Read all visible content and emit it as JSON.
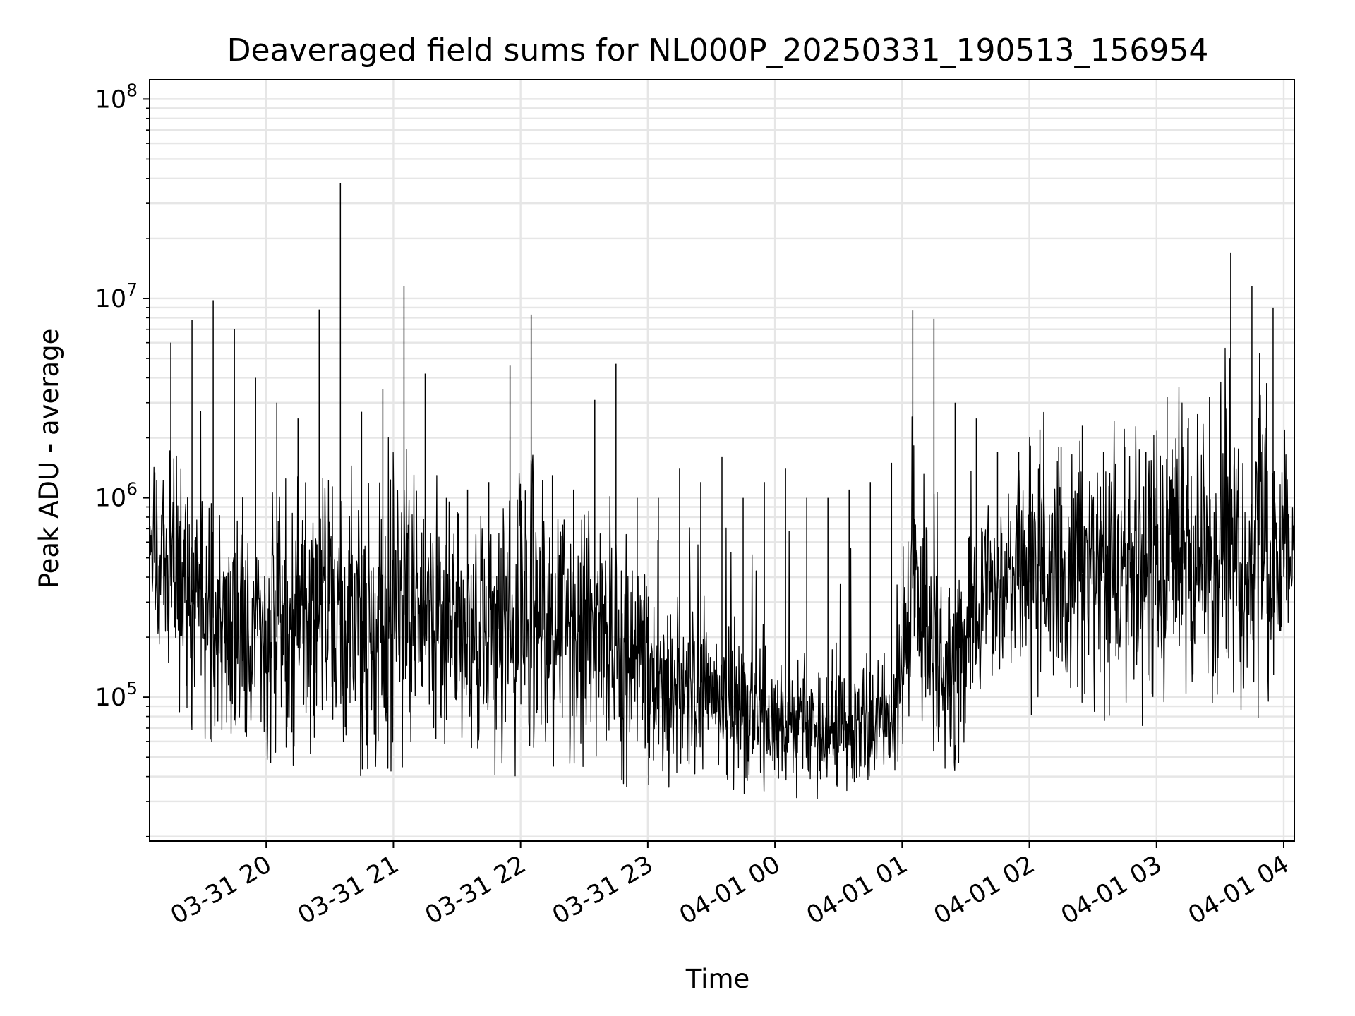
{
  "chart_data": {
    "type": "line",
    "title": "Deaveraged field sums for NL000P_20250331_190513_156954",
    "xlabel": "Time",
    "ylabel": "Peak ADU - average",
    "yscale": "log",
    "ylim": [
      19000,
      125000000
    ],
    "xlim": [
      "2025-03-31 19:05",
      "2025-04-01 04:05"
    ],
    "grid": true,
    "colors": {
      "line": "#000000",
      "grid": "#e6e6e6",
      "axes": "#000000"
    },
    "x_ticks": [
      {
        "t": "2025-03-31 20:00",
        "label": "03-31 20"
      },
      {
        "t": "2025-03-31 21:00",
        "label": "03-31 21"
      },
      {
        "t": "2025-03-31 22:00",
        "label": "03-31 22"
      },
      {
        "t": "2025-03-31 23:00",
        "label": "03-31 23"
      },
      {
        "t": "2025-04-01 00:00",
        "label": "04-01 00"
      },
      {
        "t": "2025-04-01 01:00",
        "label": "04-01 01"
      },
      {
        "t": "2025-04-01 02:00",
        "label": "04-01 02"
      },
      {
        "t": "2025-04-01 03:00",
        "label": "04-01 03"
      },
      {
        "t": "2025-04-01 04:00",
        "label": "04-01 04"
      }
    ],
    "y_ticks": [
      {
        "value": 100000,
        "mant": "10",
        "exp": "5"
      },
      {
        "value": 1000000,
        "mant": "10",
        "exp": "6"
      },
      {
        "value": 10000000,
        "mant": "10",
        "exp": "7"
      },
      {
        "value": 100000000,
        "mant": "10",
        "exp": "8"
      }
    ],
    "series": [
      {
        "x": [
          "2025-03-31 19:05",
          "2025-03-31 19:15",
          "2025-03-31 19:25",
          "2025-03-31 19:35",
          "2025-03-31 19:45",
          "2025-03-31 19:55",
          "2025-03-31 20:05",
          "2025-03-31 20:15",
          "2025-03-31 20:25",
          "2025-03-31 20:35",
          "2025-03-31 20:45",
          "2025-03-31 20:55",
          "2025-03-31 21:05",
          "2025-03-31 21:15",
          "2025-03-31 21:25",
          "2025-03-31 21:35",
          "2025-03-31 21:45",
          "2025-03-31 21:55",
          "2025-03-31 22:05",
          "2025-03-31 22:15",
          "2025-03-31 22:25",
          "2025-03-31 22:35",
          "2025-03-31 22:45",
          "2025-03-31 22:55",
          "2025-03-31 23:05",
          "2025-03-31 23:15",
          "2025-03-31 23:25",
          "2025-03-31 23:35",
          "2025-03-31 23:45",
          "2025-03-31 23:55",
          "2025-04-01 00:05",
          "2025-04-01 00:15",
          "2025-04-01 00:25",
          "2025-04-01 00:35",
          "2025-04-01 00:45",
          "2025-04-01 00:55",
          "2025-04-01 01:05",
          "2025-04-01 01:15",
          "2025-04-01 01:25",
          "2025-04-01 01:35",
          "2025-04-01 01:45",
          "2025-04-01 01:55",
          "2025-04-01 02:05",
          "2025-04-01 02:15",
          "2025-04-01 02:25",
          "2025-04-01 02:35",
          "2025-04-01 02:45",
          "2025-04-01 02:55",
          "2025-04-01 03:05",
          "2025-04-01 03:15",
          "2025-04-01 03:25",
          "2025-04-01 03:35",
          "2025-04-01 03:45",
          "2025-04-01 03:55",
          "2025-04-01 04:05"
        ],
        "min": [
          300000,
          100000,
          65000,
          55000,
          50000,
          45000,
          45000,
          45000,
          50000,
          42000,
          40000,
          40000,
          38000,
          45000,
          55000,
          45000,
          42000,
          38000,
          40000,
          45000,
          45000,
          40000,
          35000,
          35000,
          33000,
          33000,
          40000,
          40000,
          30000,
          32000,
          30000,
          32000,
          30000,
          32000,
          35000,
          38000,
          60000,
          38000,
          35000,
          60000,
          100000,
          110000,
          50000,
          90000,
          90000,
          70000,
          90000,
          60000,
          100000,
          75000,
          60000,
          95000,
          70000,
          95000,
          300000
        ],
        "median": [
          600000,
          400000,
          300000,
          250000,
          220000,
          220000,
          200000,
          230000,
          250000,
          230000,
          220000,
          220000,
          260000,
          250000,
          230000,
          200000,
          200000,
          200000,
          220000,
          230000,
          220000,
          200000,
          180000,
          130000,
          120000,
          110000,
          110000,
          100000,
          80000,
          75000,
          70000,
          70000,
          70000,
          70000,
          75000,
          80000,
          350000,
          150000,
          120000,
          250000,
          350000,
          400000,
          380000,
          400000,
          420000,
          420000,
          450000,
          470000,
          500000,
          480000,
          450000,
          500000,
          520000,
          550000,
          550000
        ],
        "max": [
          4700000,
          6000000,
          7800000,
          9800000,
          7000000,
          4000000,
          3000000,
          2500000,
          8800000,
          38000000,
          2700000,
          3500000,
          11500000,
          4200000,
          1000000,
          1100000,
          1200000,
          4600000,
          8300000,
          1300000,
          1100000,
          3100000,
          4700000,
          1000000,
          1000000,
          1400000,
          1200000,
          1600000,
          1000000,
          1200000,
          1400000,
          1000000,
          1000000,
          1100000,
          1200000,
          1500000,
          8700000,
          7900000,
          3000000,
          2500000,
          1700000,
          1700000,
          2200000,
          1800000,
          2300000,
          1700000,
          1800000,
          1700000,
          3200000,
          2500000,
          3200000,
          17000000,
          11500000,
          9000000,
          3000000
        ]
      }
    ]
  }
}
